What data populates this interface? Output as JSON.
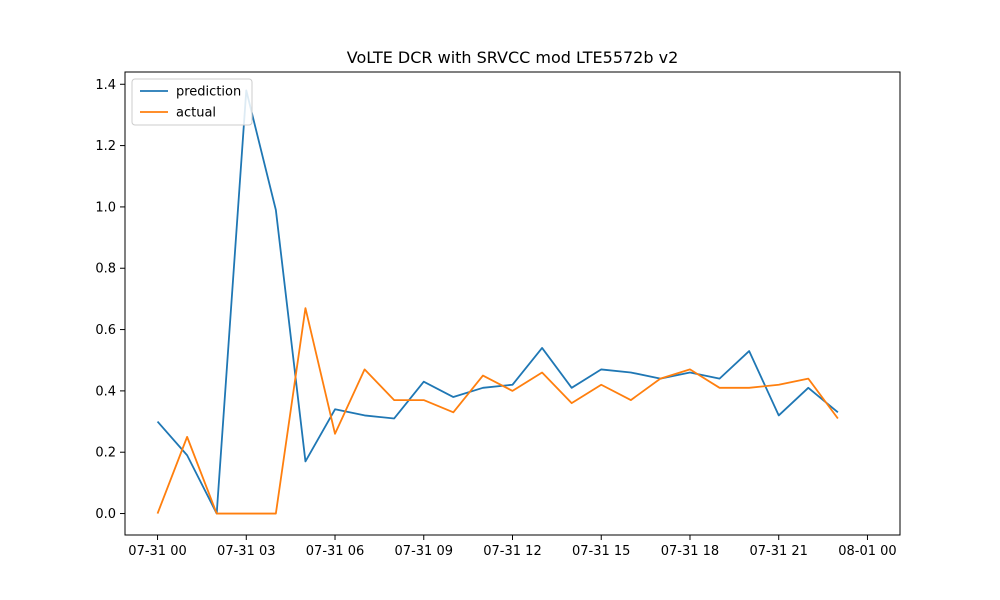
{
  "chart_data": {
    "type": "line",
    "title": "VoLTE DCR with SRVCC mod LTE5572b v2",
    "xlabel": "",
    "ylabel": "",
    "x": [
      "07-31 00",
      "07-31 01",
      "07-31 02",
      "07-31 03",
      "07-31 04",
      "07-31 05",
      "07-31 06",
      "07-31 07",
      "07-31 08",
      "07-31 09",
      "07-31 10",
      "07-31 11",
      "07-31 12",
      "07-31 13",
      "07-31 14",
      "07-31 15",
      "07-31 16",
      "07-31 17",
      "07-31 18",
      "07-31 19",
      "07-31 20",
      "07-31 21",
      "07-31 22",
      "07-31 23"
    ],
    "x_tick_labels": [
      "07-31 00",
      "07-31 03",
      "07-31 06",
      "07-31 09",
      "07-31 12",
      "07-31 15",
      "07-31 18",
      "07-31 21",
      "08-01 00"
    ],
    "y_tick_labels": [
      "0.0",
      "0.2",
      "0.4",
      "0.6",
      "0.8",
      "1.0",
      "1.2",
      "1.4"
    ],
    "xlim_hours": [
      -1.1,
      25.1
    ],
    "ylim": [
      -0.07,
      1.44
    ],
    "series": [
      {
        "name": "prediction",
        "color": "#1f77b4",
        "values": [
          0.3,
          0.19,
          0.0,
          1.38,
          0.99,
          0.17,
          0.34,
          0.32,
          0.31,
          0.43,
          0.38,
          0.41,
          0.42,
          0.54,
          0.41,
          0.47,
          0.46,
          0.44,
          0.46,
          0.44,
          0.53,
          0.32,
          0.41,
          0.33
        ]
      },
      {
        "name": "actual",
        "color": "#ff7f0e",
        "values": [
          0.0,
          0.25,
          0.0,
          0.0,
          0.0,
          0.67,
          0.26,
          0.47,
          0.37,
          0.37,
          0.33,
          0.45,
          0.4,
          0.46,
          0.36,
          0.42,
          0.37,
          0.44,
          0.47,
          0.41,
          0.41,
          0.42,
          0.44,
          0.31
        ]
      }
    ],
    "grid": false,
    "legend_position": "upper left"
  }
}
